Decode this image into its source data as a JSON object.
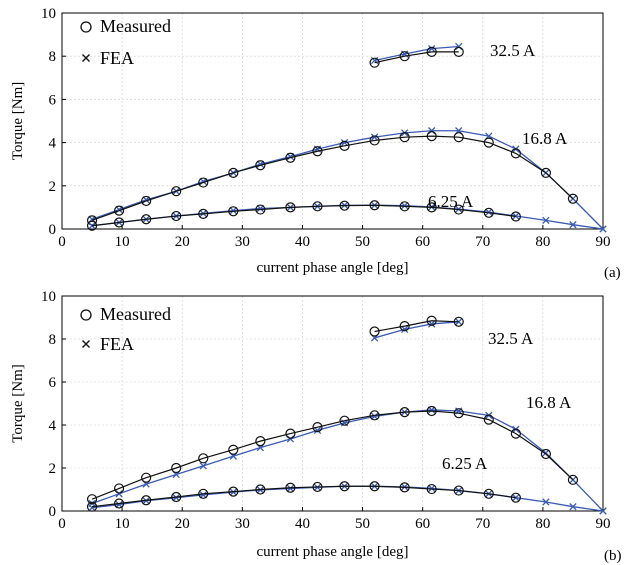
{
  "chart_data": [
    {
      "type": "line",
      "panel_label": "(a)",
      "xlabel": "current phase angle [deg]",
      "ylabel": "Torque [Nm]",
      "xlim": [
        0,
        90
      ],
      "ylim": [
        0,
        10
      ],
      "xticks": [
        "0",
        "10",
        "20",
        "30",
        "40",
        "50",
        "60",
        "70",
        "80",
        "90"
      ],
      "yticks": [
        "0",
        "2",
        "4",
        "6",
        "8",
        "10"
      ],
      "grid": true,
      "legend": {
        "position": "top-left",
        "entries": [
          "Measured",
          "FEA"
        ]
      },
      "annotations": [
        "32.5 A",
        "16.8 A",
        "6.25 A"
      ],
      "series": [
        {
          "current": "32.5 A",
          "measured_x": [
            52,
            57,
            61.5,
            66
          ],
          "measured_y": [
            7.7,
            8.0,
            8.2,
            8.2
          ],
          "fea_x": [
            52,
            57,
            61.5,
            66
          ],
          "fea_y": [
            7.8,
            8.1,
            8.35,
            8.45
          ]
        },
        {
          "current": "16.8 A",
          "measured_x": [
            5,
            9.5,
            14,
            19,
            23.5,
            28.5,
            33,
            38,
            42.5,
            47,
            52,
            57,
            61.5,
            66,
            71,
            75.5,
            80.5,
            85
          ],
          "measured_y": [
            0.4,
            0.85,
            1.3,
            1.75,
            2.15,
            2.6,
            2.95,
            3.3,
            3.6,
            3.85,
            4.1,
            4.25,
            4.3,
            4.25,
            4.0,
            3.5,
            2.6,
            1.4
          ],
          "fea_x": [
            5,
            9.5,
            14,
            19,
            23.5,
            28.5,
            33,
            38,
            42.5,
            47,
            52,
            57,
            61.5,
            66,
            71,
            75.5,
            80.5,
            85,
            90
          ],
          "fea_y": [
            0.45,
            0.9,
            1.35,
            1.75,
            2.2,
            2.6,
            3.0,
            3.35,
            3.7,
            4.0,
            4.25,
            4.45,
            4.55,
            4.55,
            4.3,
            3.7,
            2.6,
            1.4,
            0
          ]
        },
        {
          "current": "6.25 A",
          "measured_x": [
            5,
            9.5,
            14,
            19,
            23.5,
            28.5,
            33,
            38,
            42.5,
            47,
            52,
            57,
            61.5,
            66,
            71,
            75.5
          ],
          "measured_y": [
            0.15,
            0.3,
            0.45,
            0.6,
            0.7,
            0.82,
            0.9,
            1.0,
            1.05,
            1.08,
            1.1,
            1.05,
            1.0,
            0.9,
            0.75,
            0.58
          ],
          "fea_x": [
            5,
            9.5,
            14,
            19,
            23.5,
            28.5,
            33,
            38,
            42.5,
            47,
            52,
            57,
            61.5,
            66,
            71,
            75.5,
            80.5,
            85,
            90
          ],
          "fea_y": [
            0.15,
            0.3,
            0.45,
            0.6,
            0.72,
            0.85,
            0.95,
            1.0,
            1.05,
            1.1,
            1.1,
            1.08,
            1.02,
            0.92,
            0.78,
            0.6,
            0.4,
            0.2,
            0
          ]
        }
      ]
    },
    {
      "type": "line",
      "panel_label": "(b)",
      "xlabel": "current phase angle [deg]",
      "ylabel": "Torque [Nm]",
      "xlim": [
        0,
        90
      ],
      "ylim": [
        0,
        10
      ],
      "xticks": [
        "0",
        "10",
        "20",
        "30",
        "40",
        "50",
        "60",
        "70",
        "80",
        "90"
      ],
      "yticks": [
        "0",
        "2",
        "4",
        "6",
        "8",
        "10"
      ],
      "grid": true,
      "legend": {
        "position": "top-left",
        "entries": [
          "Measured",
          "FEA"
        ]
      },
      "annotations": [
        "32.5 A",
        "16.8 A",
        "6.25 A"
      ],
      "series": [
        {
          "current": "32.5 A",
          "measured_x": [
            52,
            57,
            61.5,
            66
          ],
          "measured_y": [
            8.35,
            8.6,
            8.85,
            8.8
          ],
          "fea_x": [
            52,
            57,
            61.5,
            66
          ],
          "fea_y": [
            8.05,
            8.45,
            8.7,
            8.8
          ]
        },
        {
          "current": "16.8 A",
          "measured_x": [
            5,
            9.5,
            14,
            19,
            23.5,
            28.5,
            33,
            38,
            42.5,
            47,
            52,
            57,
            61.5,
            66,
            71,
            75.5,
            80.5,
            85
          ],
          "measured_y": [
            0.55,
            1.05,
            1.55,
            2.0,
            2.45,
            2.85,
            3.25,
            3.6,
            3.9,
            4.2,
            4.45,
            4.6,
            4.65,
            4.55,
            4.25,
            3.6,
            2.65,
            1.45
          ],
          "fea_x": [
            5,
            9.5,
            14,
            19,
            23.5,
            28.5,
            33,
            38,
            42.5,
            47,
            52,
            57,
            61.5,
            66,
            71,
            75.5,
            80.5,
            85,
            90
          ],
          "fea_y": [
            0.35,
            0.8,
            1.25,
            1.7,
            2.1,
            2.55,
            2.95,
            3.35,
            3.75,
            4.1,
            4.4,
            4.6,
            4.7,
            4.65,
            4.45,
            3.8,
            2.7,
            1.45,
            0
          ]
        },
        {
          "current": "6.25 A",
          "measured_x": [
            5,
            9.5,
            14,
            19,
            23.5,
            28.5,
            33,
            38,
            42.5,
            47,
            52,
            57,
            61.5,
            66,
            71,
            75.5
          ],
          "measured_y": [
            0.2,
            0.35,
            0.5,
            0.65,
            0.8,
            0.9,
            1.0,
            1.08,
            1.12,
            1.15,
            1.15,
            1.1,
            1.02,
            0.95,
            0.8,
            0.62
          ],
          "fea_x": [
            5,
            9.5,
            14,
            19,
            23.5,
            28.5,
            33,
            38,
            42.5,
            47,
            52,
            57,
            61.5,
            66,
            71,
            75.5,
            80.5,
            85,
            90
          ],
          "fea_y": [
            0.15,
            0.3,
            0.48,
            0.62,
            0.75,
            0.88,
            0.98,
            1.05,
            1.1,
            1.15,
            1.15,
            1.12,
            1.05,
            0.95,
            0.8,
            0.62,
            0.42,
            0.2,
            0
          ]
        }
      ]
    }
  ],
  "colors": {
    "measured": "#111111",
    "fea": "#3a5bb4",
    "grid": "#cfcfcf",
    "axis": "#000000"
  }
}
